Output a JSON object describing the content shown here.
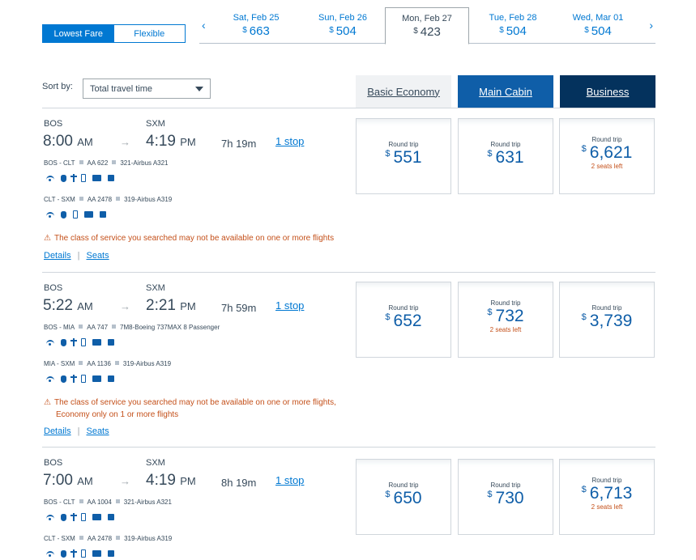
{
  "fare_toggle": {
    "lowest": "Lowest Fare",
    "flexible": "Flexible"
  },
  "dates": [
    {
      "day": "Sat, Feb 25",
      "currency": "$",
      "price": "663",
      "selected": false
    },
    {
      "day": "Sun, Feb 26",
      "currency": "$",
      "price": "504",
      "selected": false
    },
    {
      "day": "Mon, Feb 27",
      "currency": "$",
      "price": "423",
      "selected": true
    },
    {
      "day": "Tue, Feb 28",
      "currency": "$",
      "price": "504",
      "selected": false
    },
    {
      "day": "Wed, Mar 01",
      "currency": "$",
      "price": "504",
      "selected": false
    }
  ],
  "sort": {
    "label": "Sort by:",
    "value": "Total travel time"
  },
  "cabins": {
    "basic": "Basic Economy",
    "main": "Main Cabin",
    "business": "Business"
  },
  "flights": [
    {
      "origin": "BOS",
      "dest": "SXM",
      "dep_time": "8:00",
      "dep_ampm": "AM",
      "arr_time": "4:19",
      "arr_ampm": "PM",
      "duration": "7h 19m",
      "stops": "1 stop",
      "segments": [
        {
          "route": "BOS - CLT",
          "flight": "AA 622",
          "aircraft": "321-Airbus A321",
          "amenities": [
            "wifi",
            "plug",
            "usb",
            "phone",
            "tv",
            "music"
          ]
        },
        {
          "route": "CLT - SXM",
          "flight": "AA 2478",
          "aircraft": "319-Airbus A319",
          "amenities": [
            "wifi",
            "plug",
            "phone",
            "tv",
            "music"
          ]
        }
      ],
      "warning": [
        "The class of service you searched may not be available on one or more flights"
      ],
      "details": "Details",
      "seats": "Seats",
      "fares": [
        {
          "label": "Round trip",
          "currency": "$",
          "amount": "551",
          "seats": ""
        },
        {
          "label": "Round trip",
          "currency": "$",
          "amount": "631",
          "seats": ""
        },
        {
          "label": "Round trip",
          "currency": "$",
          "amount": "6,621",
          "seats": "2 seats left"
        }
      ]
    },
    {
      "origin": "BOS",
      "dest": "SXM",
      "dep_time": "5:22",
      "dep_ampm": "AM",
      "arr_time": "2:21",
      "arr_ampm": "PM",
      "duration": "7h 59m",
      "stops": "1 stop",
      "segments": [
        {
          "route": "BOS - MIA",
          "flight": "AA 747",
          "aircraft": "7M8-Boeing 737MAX 8 Passenger",
          "amenities": [
            "wifi",
            "plug",
            "usb",
            "phone",
            "tv",
            "music"
          ]
        },
        {
          "route": "MIA - SXM",
          "flight": "AA 1136",
          "aircraft": "319-Airbus A319",
          "amenities": [
            "wifi",
            "plug",
            "usb",
            "phone",
            "tv",
            "music"
          ]
        }
      ],
      "warning": [
        "The class of service you searched may not be available on one or more flights,",
        "Economy only on 1 or more flights"
      ],
      "details": "Details",
      "seats": "Seats",
      "fares": [
        {
          "label": "Round trip",
          "currency": "$",
          "amount": "652",
          "seats": ""
        },
        {
          "label": "Round trip",
          "currency": "$",
          "amount": "732",
          "seats": "2 seats left"
        },
        {
          "label": "Round trip",
          "currency": "$",
          "amount": "3,739",
          "seats": ""
        }
      ]
    },
    {
      "origin": "BOS",
      "dest": "SXM",
      "dep_time": "7:00",
      "dep_ampm": "AM",
      "arr_time": "4:19",
      "arr_ampm": "PM",
      "duration": "8h 19m",
      "stops": "1 stop",
      "segments": [
        {
          "route": "BOS - CLT",
          "flight": "AA 1004",
          "aircraft": "321-Airbus A321",
          "amenities": [
            "wifi",
            "plug",
            "usb",
            "phone",
            "tv",
            "music"
          ]
        },
        {
          "route": "CLT - SXM",
          "flight": "AA 2478",
          "aircraft": "319-Airbus A319",
          "amenities": [
            "wifi",
            "plug",
            "usb",
            "phone",
            "tv",
            "music"
          ]
        }
      ],
      "warning": [],
      "details": "",
      "seats": "",
      "fares": [
        {
          "label": "Round trip",
          "currency": "$",
          "amount": "650",
          "seats": ""
        },
        {
          "label": "Round trip",
          "currency": "$",
          "amount": "730",
          "seats": ""
        },
        {
          "label": "Round trip",
          "currency": "$",
          "amount": "6,713",
          "seats": "2 seats left"
        }
      ]
    }
  ]
}
